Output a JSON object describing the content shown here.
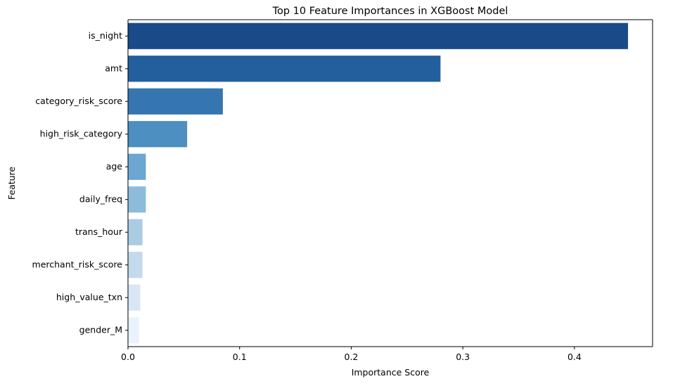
{
  "chart_data": {
    "type": "bar",
    "orientation": "horizontal",
    "title": "Top 10 Feature Importances in XGBoost Model",
    "xlabel": "Importance Score",
    "ylabel": "Feature",
    "categories": [
      "is_night",
      "amt",
      "category_risk_score",
      "high_risk_category",
      "age",
      "daily_freq",
      "trans_hour",
      "merchant_risk_score",
      "high_value_txn",
      "gender_M"
    ],
    "values": [
      0.448,
      0.28,
      0.085,
      0.053,
      0.016,
      0.016,
      0.013,
      0.013,
      0.011,
      0.01
    ],
    "xlim": [
      0,
      0.47
    ],
    "xticks": [
      0.0,
      0.1,
      0.2,
      0.3,
      0.4
    ],
    "xtick_labels": [
      "0.0",
      "0.1",
      "0.2",
      "0.3",
      "0.4"
    ],
    "colors": [
      "#1a4a87",
      "#235f9c",
      "#3576b0",
      "#4c8fc0",
      "#6ca6d1",
      "#8cbcda",
      "#a9cce3",
      "#c3d9ec",
      "#d9e6f4",
      "#eaf2fb"
    ],
    "grid": false,
    "legend": "none"
  }
}
